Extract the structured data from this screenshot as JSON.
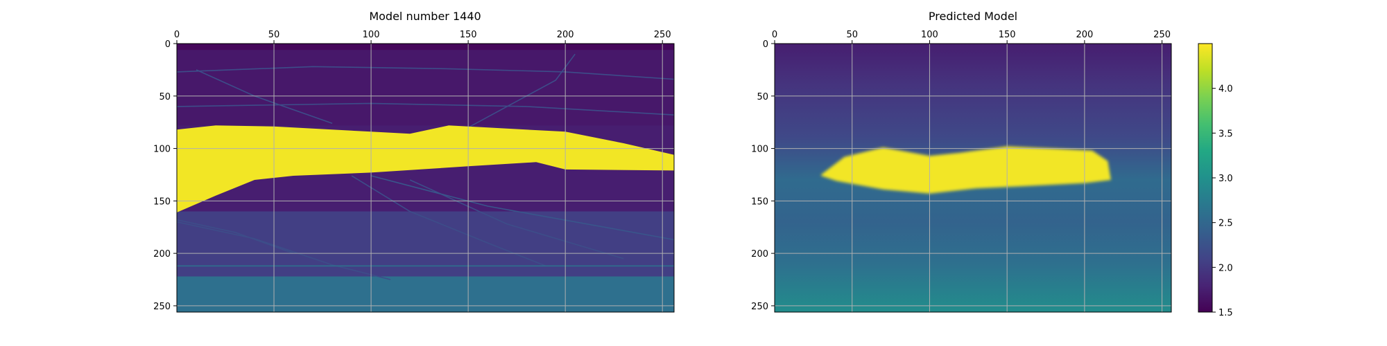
{
  "chart_data": [
    {
      "type": "heatmap",
      "title": "Model number 1440",
      "xlim": [
        0,
        256
      ],
      "ylim": [
        256,
        0
      ],
      "xticks": [
        "0",
        "50",
        "100",
        "150",
        "200",
        "250"
      ],
      "yticks": [
        "0",
        "50",
        "100",
        "150",
        "200",
        "250"
      ],
      "x_axis_position": "top",
      "y_axis_direction": "downward",
      "grid": true,
      "colormap": "viridis",
      "value_range": [
        1.5,
        4.5
      ],
      "background_layers": [
        {
          "from": 0,
          "to": 6,
          "value": 1.55
        },
        {
          "from": 6,
          "to": 78,
          "value": 1.7
        },
        {
          "from": 78,
          "to": 160,
          "value": 1.75
        },
        {
          "from": 160,
          "to": 222,
          "value": 2.05
        },
        {
          "from": 222,
          "to": 256,
          "value": 2.6
        }
      ],
      "body": {
        "value": 4.45,
        "top_edge": [
          [
            0,
            82
          ],
          [
            20,
            78
          ],
          [
            50,
            79
          ],
          [
            100,
            84
          ],
          [
            120,
            86
          ],
          [
            140,
            78
          ],
          [
            160,
            80
          ],
          [
            200,
            84
          ],
          [
            230,
            95
          ],
          [
            256,
            106
          ]
        ],
        "bottom_edge": [
          [
            256,
            121
          ],
          [
            200,
            120
          ],
          [
            185,
            113
          ],
          [
            150,
            117
          ],
          [
            100,
            123
          ],
          [
            60,
            126
          ],
          [
            40,
            130
          ],
          [
            20,
            145
          ],
          [
            0,
            161
          ]
        ]
      },
      "thin_lines": [
        {
          "points": [
            [
              0,
              27
            ],
            [
              70,
              22
            ],
            [
              140,
              24
            ],
            [
              200,
              27
            ],
            [
              256,
              34
            ]
          ],
          "value": 2.2
        },
        {
          "points": [
            [
              0,
              60
            ],
            [
              100,
              57
            ],
            [
              180,
              60
            ],
            [
              256,
              68
            ]
          ],
          "value": 2.2
        },
        {
          "points": [
            [
              0,
              170
            ],
            [
              40,
              186
            ],
            [
              80,
              211
            ],
            [
              110,
              225
            ]
          ],
          "value": 2.2
        },
        {
          "points": [
            [
              120,
              130
            ],
            [
              170,
              172
            ],
            [
              230,
              205
            ]
          ],
          "value": 2.2
        },
        {
          "points": [
            [
              100,
              126
            ],
            [
              160,
              155
            ],
            [
              256,
              187
            ]
          ],
          "value": 2.3
        },
        {
          "points": [
            [
              90,
              126
            ],
            [
              120,
              160
            ],
            [
              160,
              190
            ],
            [
              190,
              212
            ]
          ],
          "value": 2.2
        },
        {
          "points": [
            [
              10,
              25
            ],
            [
              40,
              50
            ],
            [
              80,
              76
            ]
          ],
          "value": 2.2
        },
        {
          "points": [
            [
              130,
              100
            ],
            [
              170,
              60
            ],
            [
              195,
              35
            ],
            [
              205,
              10
            ]
          ],
          "value": 2.2
        },
        {
          "points": [
            [
              0,
              212
            ],
            [
              256,
              212
            ]
          ],
          "value": 2.6
        },
        {
          "points": [
            [
              0,
              168
            ],
            [
              30,
              180
            ],
            [
              60,
              200
            ]
          ],
          "value": 2.2
        }
      ]
    },
    {
      "type": "heatmap",
      "title": "Predicted Model",
      "xlim": [
        0,
        256
      ],
      "ylim": [
        256,
        0
      ],
      "xticks": [
        "0",
        "50",
        "100",
        "150",
        "200",
        "250"
      ],
      "yticks": [
        "0",
        "50",
        "100",
        "150",
        "200",
        "250"
      ],
      "x_axis_position": "top",
      "y_axis_direction": "downward",
      "grid": true,
      "colormap": "viridis",
      "value_range": [
        1.5,
        4.5
      ],
      "background_gradient": [
        {
          "y": 0,
          "value": 1.75
        },
        {
          "y": 40,
          "value": 1.95
        },
        {
          "y": 90,
          "value": 2.15
        },
        {
          "y": 130,
          "value": 2.55
        },
        {
          "y": 170,
          "value": 2.45
        },
        {
          "y": 210,
          "value": 2.6
        },
        {
          "y": 256,
          "value": 2.95
        }
      ],
      "body": {
        "value": 4.45,
        "top_edge": [
          [
            30,
            125
          ],
          [
            45,
            108
          ],
          [
            70,
            99
          ],
          [
            100,
            107
          ],
          [
            120,
            104
          ],
          [
            150,
            98
          ],
          [
            180,
            100
          ],
          [
            205,
            102
          ],
          [
            215,
            112
          ]
        ],
        "bottom_edge": [
          [
            217,
            130
          ],
          [
            200,
            133
          ],
          [
            160,
            136
          ],
          [
            130,
            138
          ],
          [
            100,
            143
          ],
          [
            70,
            139
          ],
          [
            40,
            131
          ],
          [
            30,
            126
          ]
        ]
      }
    }
  ],
  "colorbar": {
    "min": 1.5,
    "max": 4.5,
    "colormap": "viridis",
    "ticks": [
      "1.5",
      "2.0",
      "2.5",
      "3.0",
      "3.5",
      "4.0"
    ]
  }
}
